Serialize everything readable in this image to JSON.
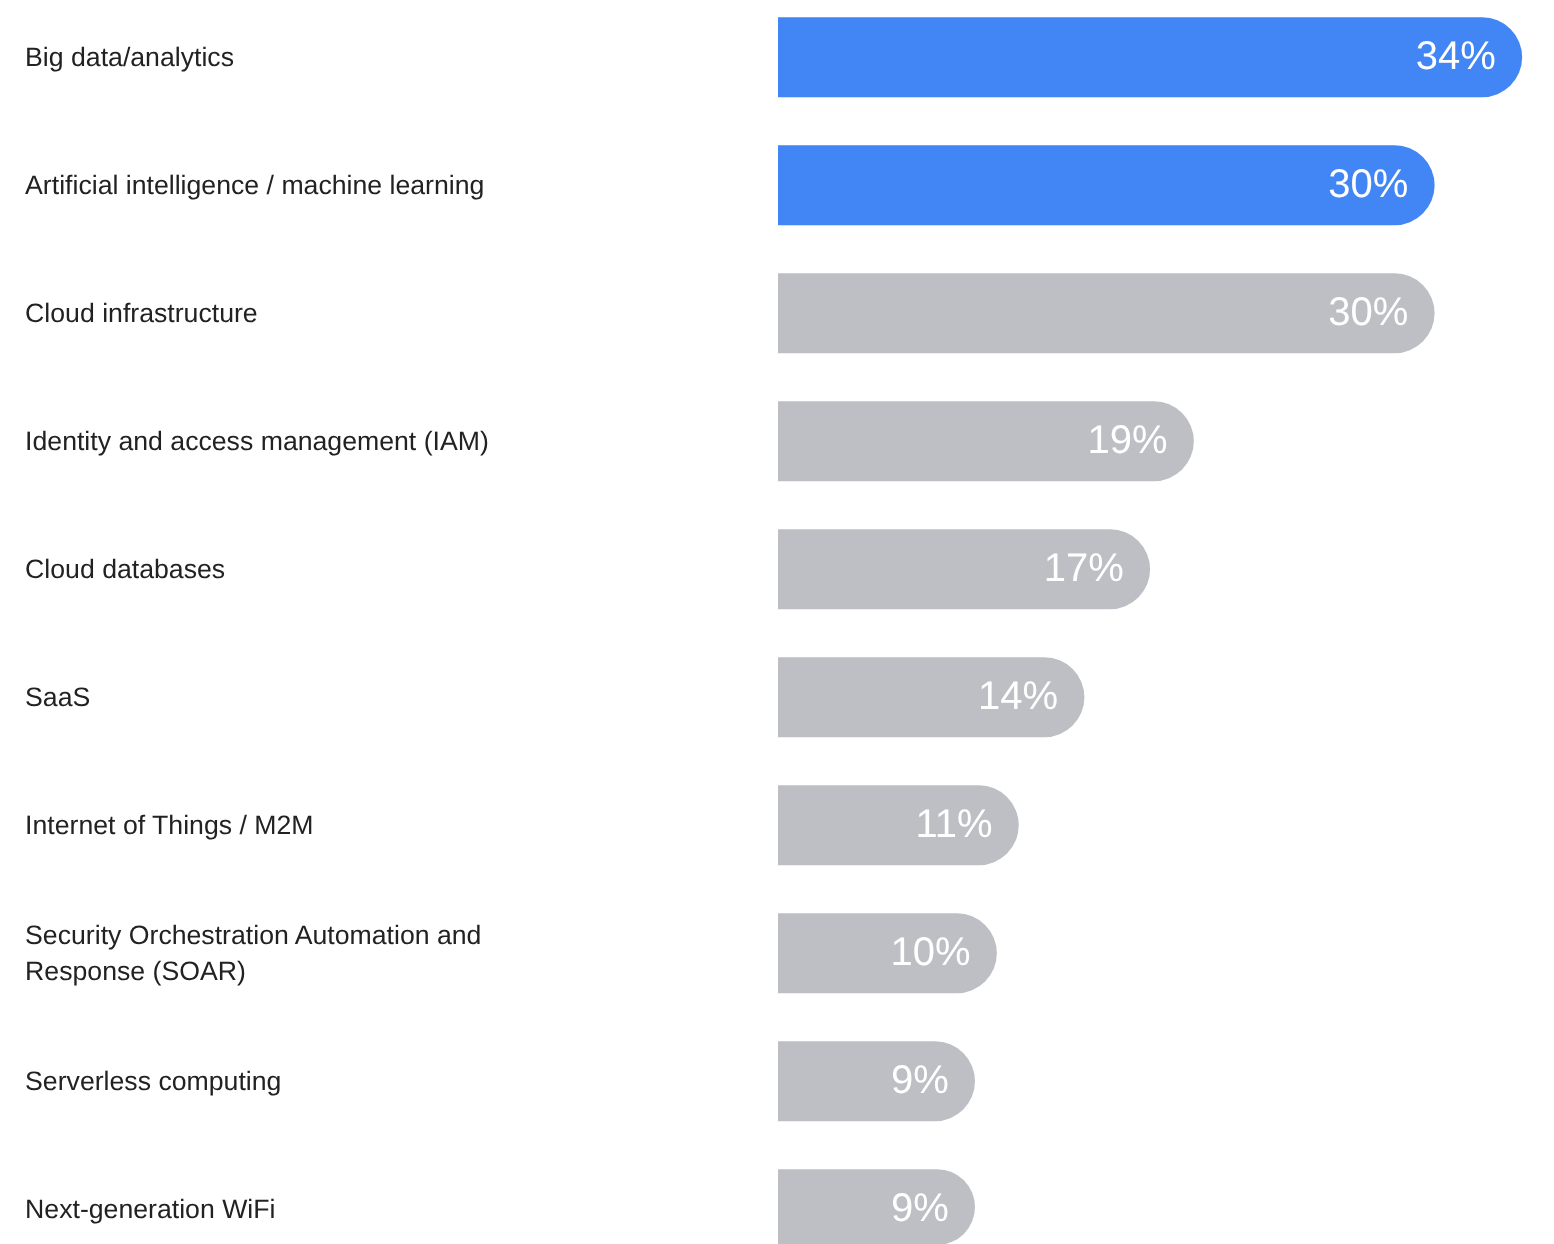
{
  "chart_data": {
    "type": "bar",
    "orientation": "horizontal",
    "categories": [
      "Big data/analytics",
      "Artificial intelligence / machine learning",
      "Cloud infrastructure",
      "Identity and access management (IAM)",
      "Cloud databases",
      "SaaS",
      "Internet of Things / M2M",
      "Security Orchestration Automation and Response (SOAR)",
      "Serverless computing",
      "Next-generation WiFi"
    ],
    "values": [
      34,
      30,
      30,
      19,
      17,
      14,
      11,
      10,
      9,
      9
    ],
    "colors": [
      "#4285f4",
      "#4285f4",
      "#bdbfc4",
      "#bdbfc4",
      "#bdbfc4",
      "#bdbfc4",
      "#bdbfc4",
      "#bdbfc4",
      "#bdbfc4",
      "#bdbfc4"
    ],
    "value_labels": [
      "34%",
      "30%",
      "30%",
      "19%",
      "17%",
      "14%",
      "11%",
      "10%",
      "9%",
      "9%"
    ],
    "tick_labels": false
  }
}
